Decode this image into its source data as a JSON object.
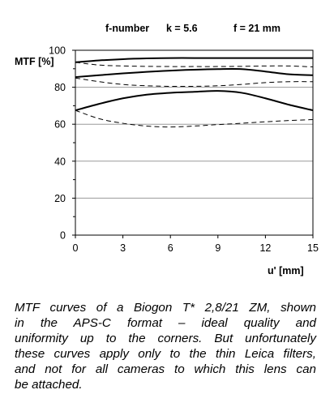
{
  "chart_data": {
    "type": "line",
    "header": {
      "fnumber_label": "f-number",
      "fnumber_value": "k = 5.6",
      "focal_value": "f = 21 mm"
    },
    "ylabel": "MTF [%]",
    "xlabel": "u' [mm]",
    "xlim": [
      0,
      15
    ],
    "ylim": [
      0,
      100
    ],
    "xticks": [
      "0",
      "3",
      "6",
      "9",
      "12",
      "15"
    ],
    "yticks": [
      "0",
      "20",
      "40",
      "60",
      "80",
      "100"
    ],
    "grid": "horizontal",
    "series": [
      {
        "style": "solid",
        "x": [
          0,
          1.5,
          3,
          4.5,
          6,
          7.5,
          9,
          10.5,
          12,
          13.5,
          15
        ],
        "y": [
          93.5,
          94.5,
          95.2,
          95.6,
          95.8,
          95.8,
          95.8,
          95.8,
          95.8,
          95.8,
          95.8
        ]
      },
      {
        "style": "dashed",
        "x": [
          0,
          1.5,
          3,
          4.5,
          6,
          7.5,
          9,
          10.5,
          12,
          13.5,
          15
        ],
        "y": [
          93.5,
          92.0,
          91.5,
          91.3,
          91.2,
          91.2,
          91.2,
          91.3,
          91.5,
          91.5,
          91.0
        ]
      },
      {
        "style": "solid",
        "x": [
          0,
          1.5,
          3,
          4.5,
          6,
          7.5,
          9,
          10.5,
          12,
          13.5,
          15
        ],
        "y": [
          85.5,
          86.5,
          87.5,
          88.3,
          89.0,
          89.5,
          89.8,
          89.8,
          88.5,
          87.0,
          86.5
        ]
      },
      {
        "style": "dashed",
        "x": [
          0,
          1.5,
          3,
          4.5,
          6,
          7.5,
          9,
          10.5,
          12,
          13.5,
          15
        ],
        "y": [
          85.0,
          83.0,
          81.5,
          80.8,
          80.5,
          80.5,
          80.8,
          81.5,
          82.5,
          83.0,
          83.0
        ]
      },
      {
        "style": "solid",
        "x": [
          0,
          1.5,
          3,
          4.5,
          6,
          7.5,
          9,
          10.5,
          12,
          13.5,
          15
        ],
        "y": [
          67.5,
          71.0,
          74.0,
          76.0,
          77.0,
          77.5,
          78.0,
          77.0,
          74.0,
          70.5,
          67.5
        ]
      },
      {
        "style": "dashed",
        "x": [
          0,
          1.5,
          3,
          4.5,
          6,
          7.5,
          9,
          10.5,
          12,
          13.5,
          15
        ],
        "y": [
          67.5,
          63.0,
          60.5,
          59.0,
          58.5,
          59.0,
          59.8,
          60.5,
          61.3,
          62.0,
          62.5
        ]
      }
    ]
  },
  "caption": {
    "lines": [
      "MTF curves of a Biogon T* 2,8/21 ZM, shown",
      "in the APS-C format – ideal quality and",
      "uniformity up to the corners. But unfortunately",
      "these curves apply only to the thin Leica filters,",
      "and not for all cameras to which this lens can",
      "be attached."
    ]
  }
}
